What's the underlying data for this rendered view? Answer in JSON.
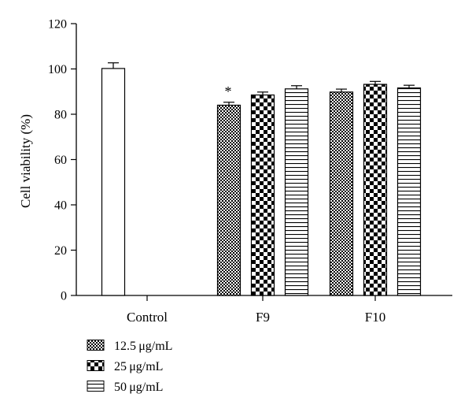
{
  "chart_data": {
    "type": "bar",
    "ylabel": "Cell viability (%)",
    "xlabel": "",
    "ylim": [
      0,
      120
    ],
    "yticks": [
      "0",
      "20",
      "40",
      "60",
      "80",
      "100",
      "120"
    ],
    "grid": false,
    "legend_position": "bottom-left",
    "groups": [
      {
        "label": "Control",
        "bars": [
          {
            "series": "control",
            "value": 100.2,
            "error": 2.5
          }
        ]
      },
      {
        "label": "F9",
        "bars": [
          {
            "series": 0,
            "value": 84.0,
            "error": 1.3,
            "annotation": "*"
          },
          {
            "series": 1,
            "value": 88.5,
            "error": 1.3
          },
          {
            "series": 2,
            "value": 91.2,
            "error": 1.4
          }
        ]
      },
      {
        "label": "F10",
        "bars": [
          {
            "series": 0,
            "value": 89.8,
            "error": 1.3
          },
          {
            "series": 1,
            "value": 93.2,
            "error": 1.3
          },
          {
            "series": 2,
            "value": 91.6,
            "error": 1.2
          }
        ]
      }
    ],
    "series": [
      {
        "name": "12.5 μg/mL",
        "pattern": "fine-checker"
      },
      {
        "name": "25 μg/mL",
        "pattern": "coarse-checker"
      },
      {
        "name": "50 μg/mL",
        "pattern": "horizontal-lines"
      }
    ],
    "colors": {
      "ink": "#000000",
      "background": "#ffffff"
    }
  }
}
